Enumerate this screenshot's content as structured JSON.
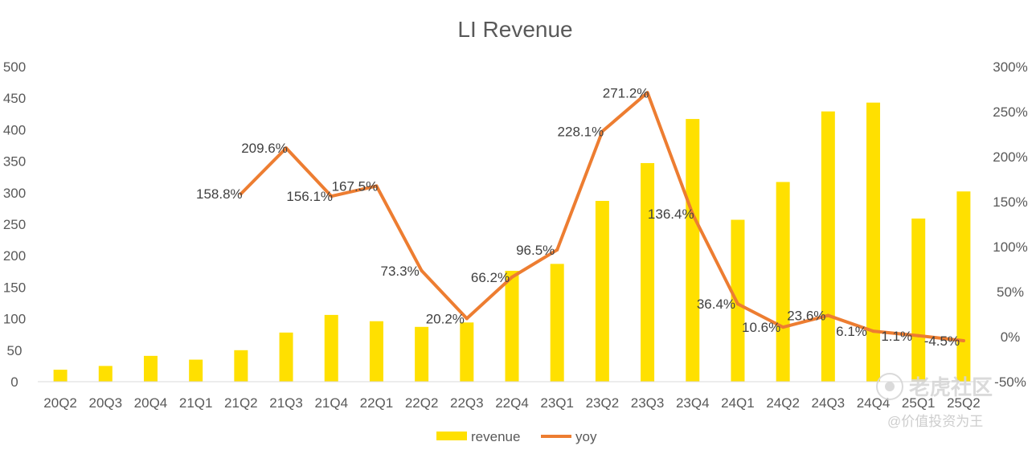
{
  "chart_data": {
    "type": "bar",
    "title": "LI Revenue",
    "categories": [
      "20Q2",
      "20Q3",
      "20Q4",
      "21Q1",
      "21Q2",
      "21Q3",
      "21Q4",
      "22Q1",
      "22Q2",
      "22Q3",
      "22Q4",
      "23Q1",
      "23Q2",
      "23Q3",
      "23Q4",
      "24Q1",
      "24Q2",
      "24Q3",
      "24Q4",
      "25Q1",
      "25Q2"
    ],
    "series": [
      {
        "name": "revenue",
        "type": "bar",
        "axis": "left",
        "color": "#FFE000",
        "values": [
          19,
          25,
          41,
          35,
          50,
          78,
          106,
          96,
          87,
          94,
          176,
          187,
          287,
          347,
          417,
          257,
          317,
          429,
          443,
          259,
          302
        ]
      },
      {
        "name": "yoy",
        "type": "line",
        "axis": "right",
        "color": "#ED7D31",
        "values": [
          null,
          null,
          null,
          null,
          158.8,
          209.6,
          156.1,
          167.5,
          73.3,
          20.2,
          66.2,
          96.5,
          228.1,
          271.2,
          136.4,
          36.4,
          10.6,
          23.6,
          6.1,
          1.1,
          -4.5
        ],
        "labels": [
          "",
          "",
          "",
          "",
          "158.8%",
          "209.6%",
          "156.1%",
          "167.5%",
          "73.3%",
          "20.2%",
          "66.2%",
          "96.5%",
          "228.1%",
          "271.2%",
          "136.4%",
          "36.4%",
          "10.6%",
          "23.6%",
          "6.1%",
          "1.1%",
          "-4.5%"
        ]
      }
    ],
    "left_axis": {
      "ylim": [
        0,
        500
      ],
      "ticks": [
        "0",
        "50",
        "100",
        "150",
        "200",
        "250",
        "300",
        "350",
        "400",
        "450",
        "500"
      ]
    },
    "right_axis": {
      "ylim": [
        -50,
        300
      ],
      "ticks": [
        "-50%",
        "0%",
        "50%",
        "100%",
        "150%",
        "200%",
        "250%",
        "300%"
      ]
    },
    "grid": false,
    "legend": {
      "position": "bottom",
      "items": [
        "revenue",
        "yoy"
      ]
    }
  },
  "watermark": {
    "logo_text": "老虎社区",
    "handle": "@价值投资为王"
  }
}
